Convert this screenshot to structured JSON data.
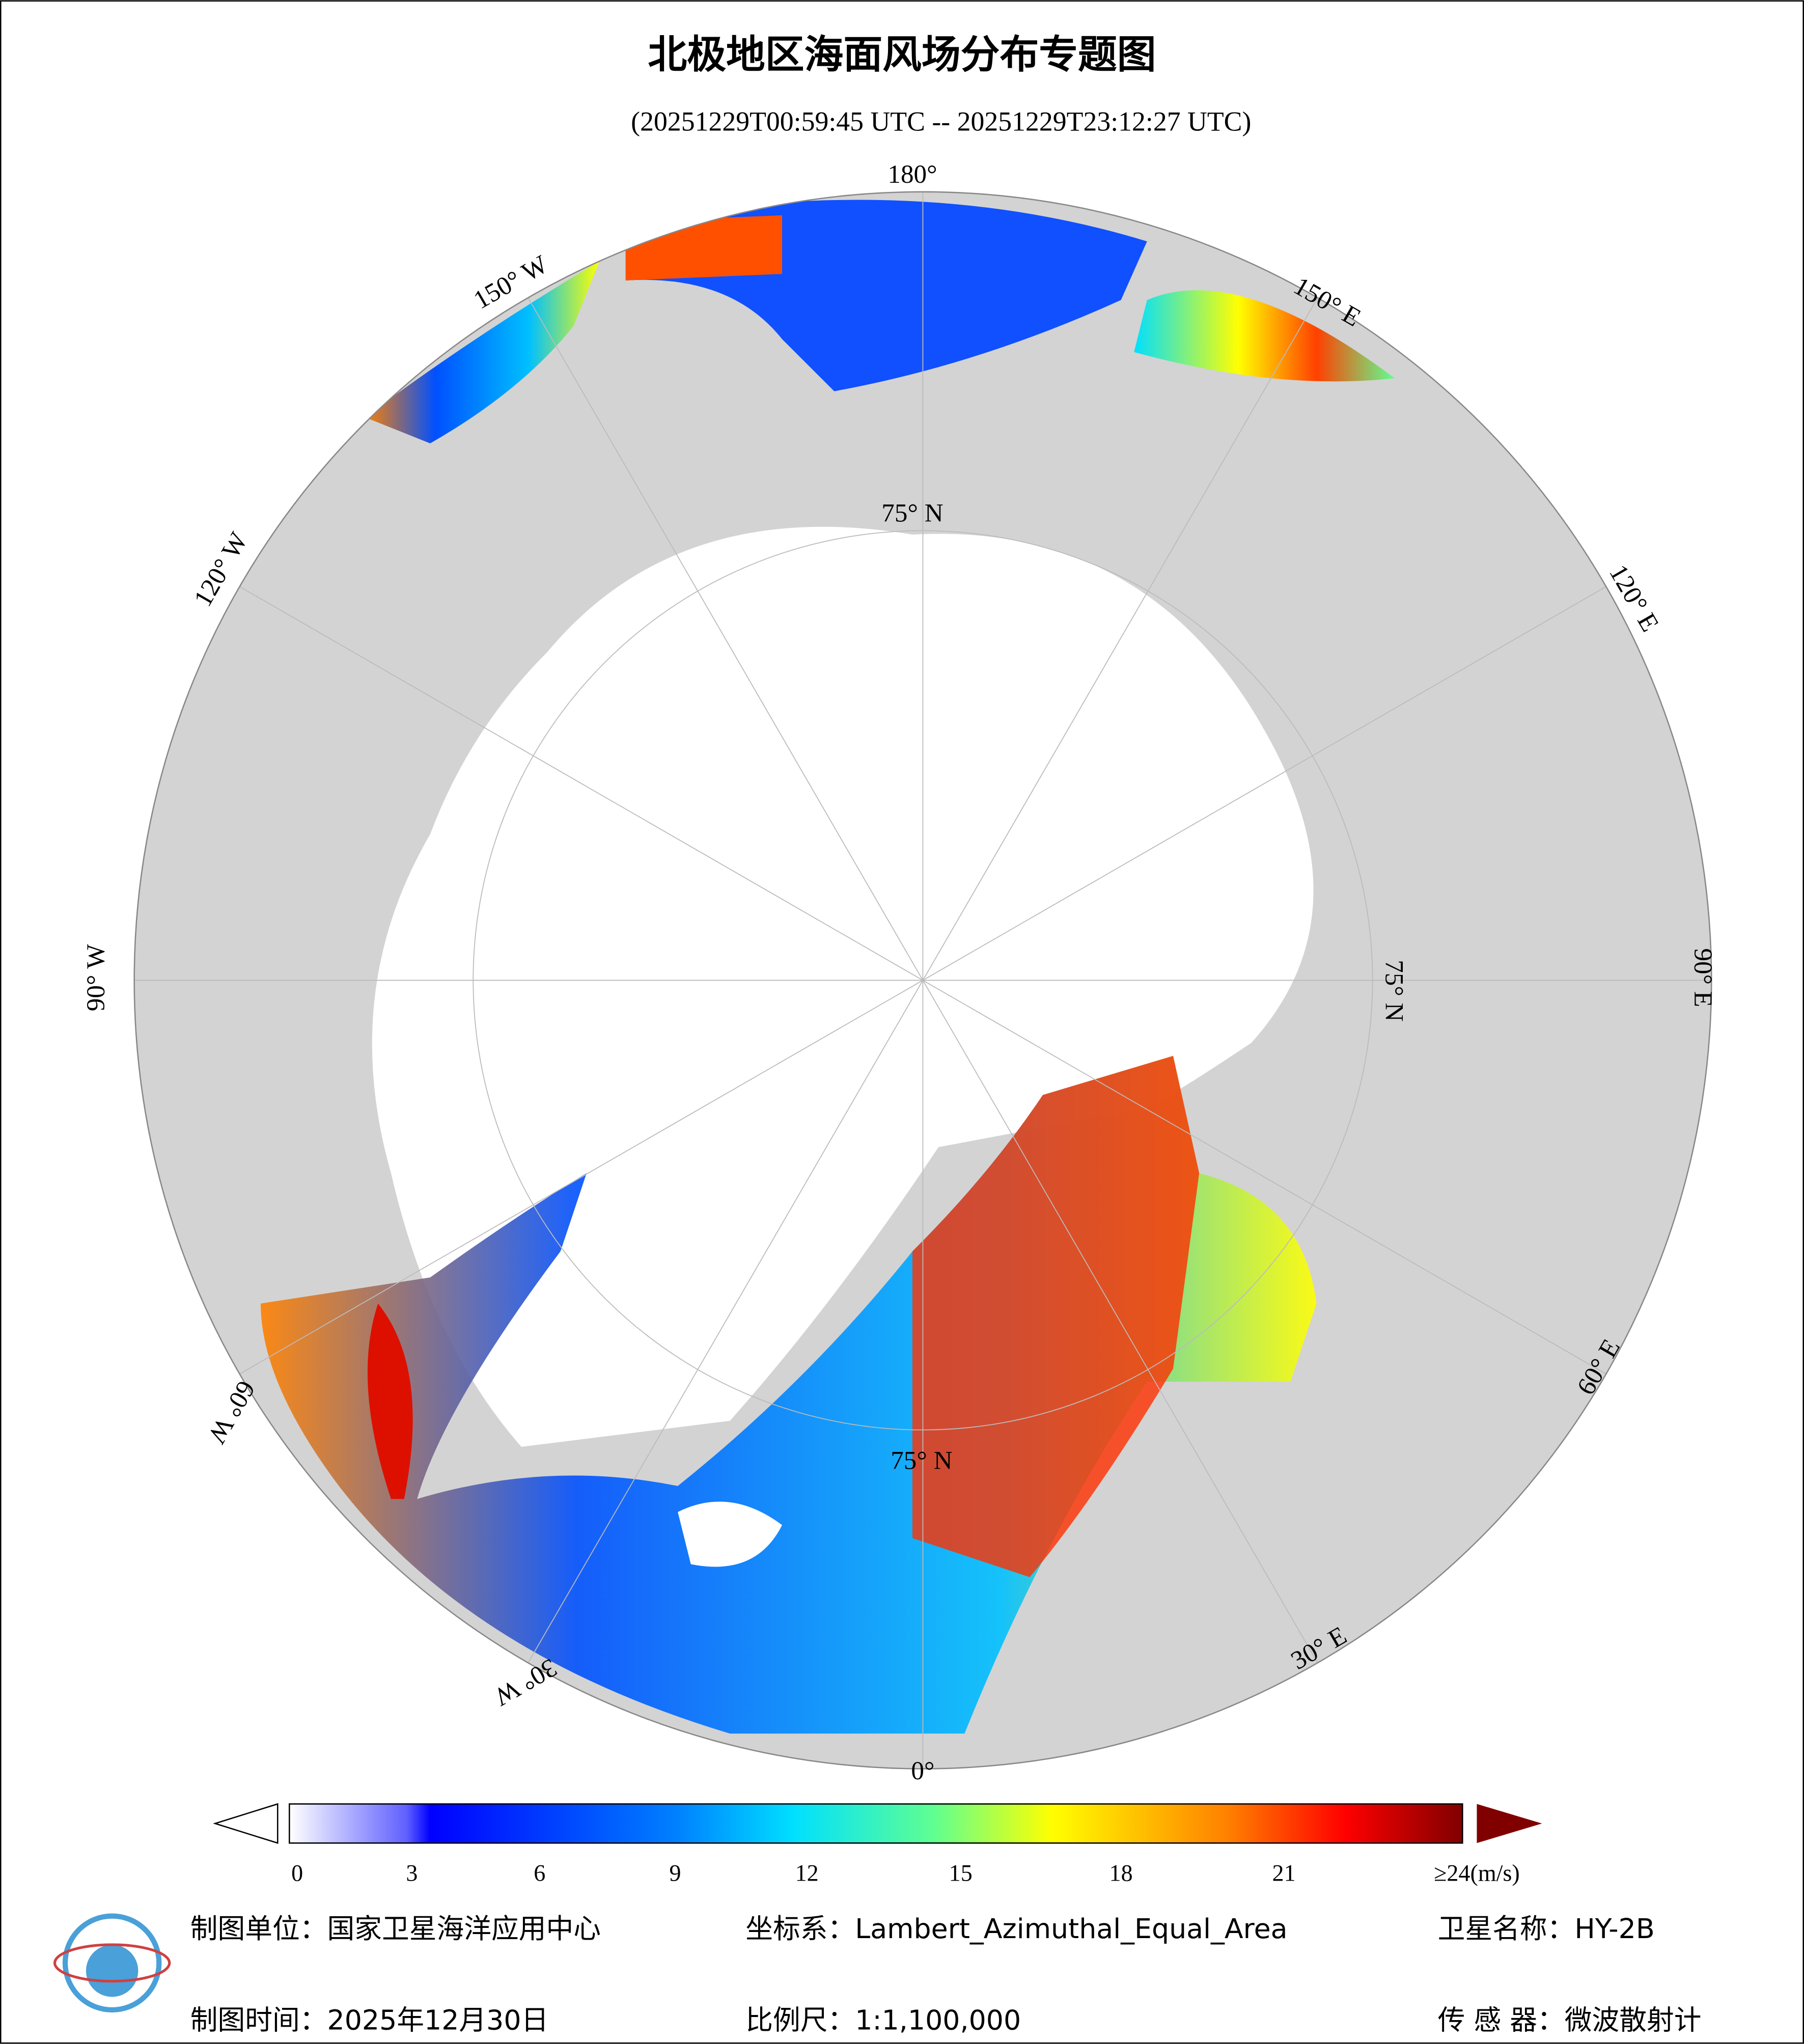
{
  "title": "北极地区海面风场分布专题图",
  "subtitle": "(20251229T00:59:45 UTC -- 20251229T23:12:27 UTC)",
  "map": {
    "longitude_labels": [
      "180°",
      "150° W",
      "120° W",
      "90° W",
      "60° W",
      "30° W",
      "0°",
      "30° E",
      "60° E",
      "90° E",
      "120° E",
      "150° E"
    ],
    "latitude_labels": [
      "75° N",
      "75° N",
      "75° N"
    ]
  },
  "colorbar": {
    "ticks": [
      "0",
      "3",
      "6",
      "9",
      "12",
      "15",
      "18",
      "21",
      "≥24(m/s)"
    ]
  },
  "footer": {
    "unit": "制图单位：国家卫星海洋应用中心",
    "crs": "坐标系：Lambert_Azimuthal_Equal_Area",
    "satellite": "卫星名称：HY-2B",
    "date": "制图时间：2025年12月30日",
    "scale": "比例尺：1:1,100,000",
    "sensor": "传 感 器：微波散射计"
  }
}
